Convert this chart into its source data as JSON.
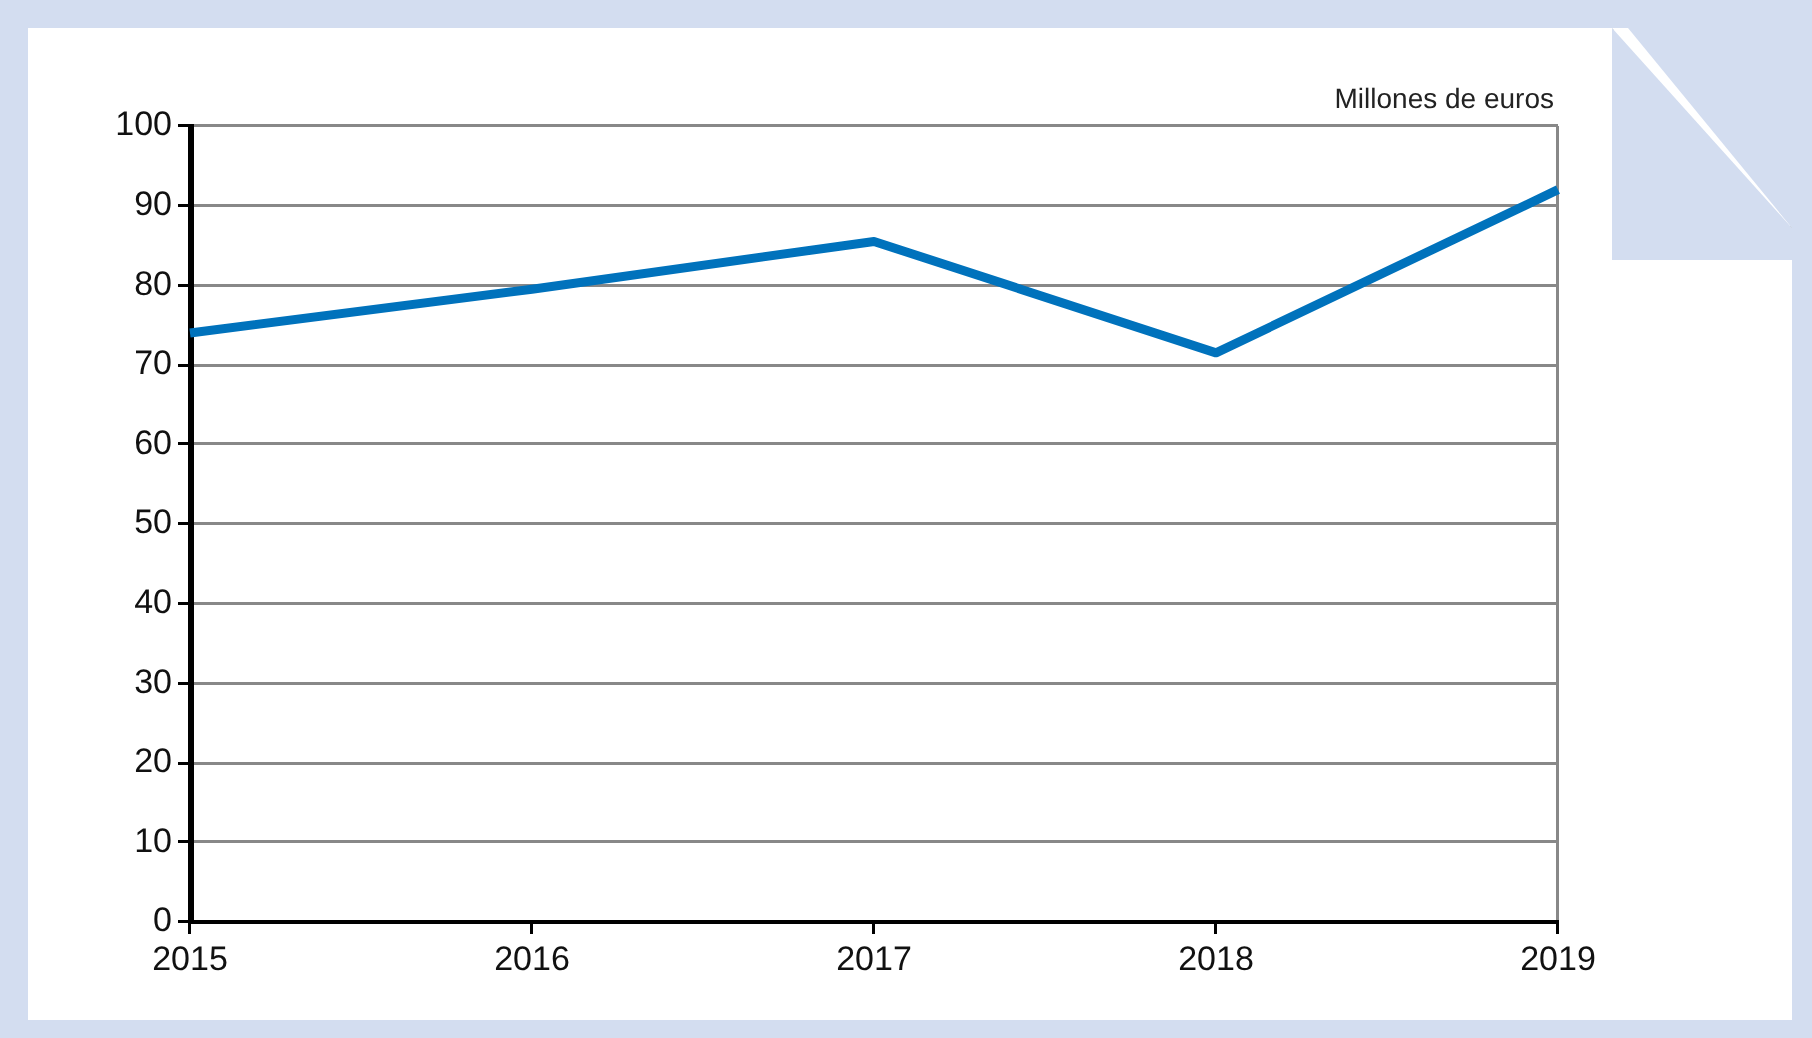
{
  "chart_data": {
    "type": "line",
    "ylabel": "Millones de euros",
    "categories": [
      "2015",
      "2016",
      "2017",
      "2018",
      "2019"
    ],
    "series": [
      {
        "color": "#0072bc",
        "values": [
          74,
          79.5,
          85.5,
          71.5,
          92
        ]
      }
    ],
    "ylim": [
      0,
      100
    ],
    "yticks": [
      0,
      10,
      20,
      30,
      40,
      50,
      60,
      70,
      80,
      90,
      100
    ],
    "grid": "y",
    "legend": false,
    "marker": "none",
    "line_style": "solid"
  }
}
